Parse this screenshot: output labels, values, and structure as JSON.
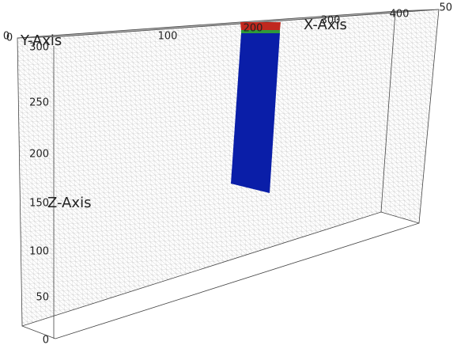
{
  "axes": {
    "x": {
      "label": "X-Axis",
      "ticks": [
        "0",
        "100",
        "200",
        "300",
        "400"
      ]
    },
    "y": {
      "label": "Y-Axis",
      "ticks": [
        "0",
        "50"
      ]
    },
    "z": {
      "label": "Z-Axis",
      "ticks": [
        "0",
        "50",
        "100",
        "150",
        "200",
        "250",
        "300"
      ]
    }
  }
}
